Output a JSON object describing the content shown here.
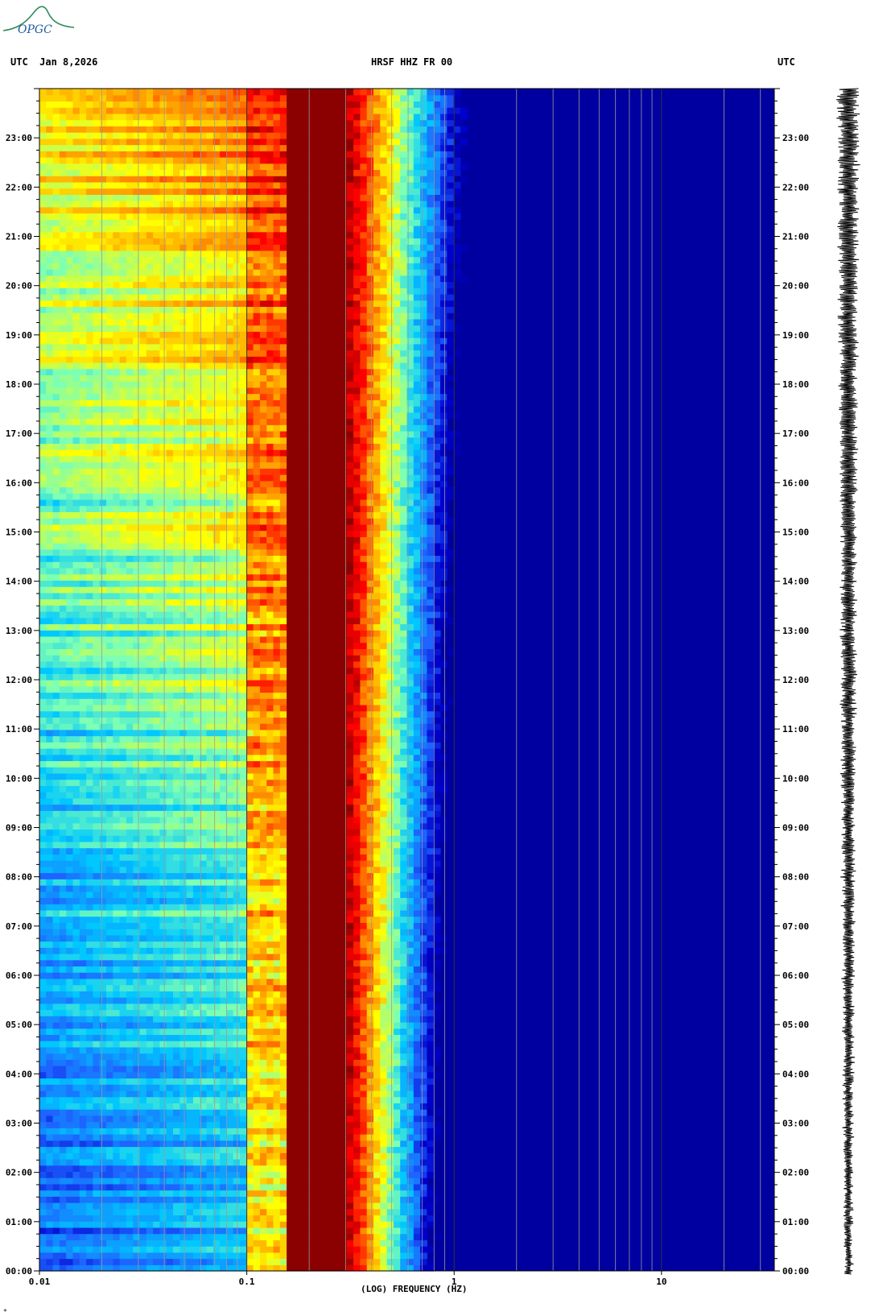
{
  "header": {
    "timezone_left": "UTC",
    "date": "Jan 8,2026",
    "station": "HRSF HHZ FR 00",
    "timezone_right": "UTC"
  },
  "logo_text": "OPGC",
  "corner_mark": "*",
  "chart_data": {
    "type": "heatmap",
    "title": "HRSF HHZ FR 00",
    "xlabel": "(LOG) FREQUENCY (HZ)",
    "x_scale": "log",
    "xlim": [
      0.01,
      35
    ],
    "x_ticks": [
      0.01,
      0.1,
      1,
      10
    ],
    "x_tick_labels": [
      "0.01",
      "0.1",
      "1",
      "10"
    ],
    "ylim_hours_utc": [
      0,
      24
    ],
    "y_tick_labels": [
      "00:00",
      "01:00",
      "02:00",
      "03:00",
      "04:00",
      "05:00",
      "06:00",
      "07:00",
      "08:00",
      "09:00",
      "10:00",
      "11:00",
      "12:00",
      "13:00",
      "14:00",
      "15:00",
      "16:00",
      "17:00",
      "18:00",
      "19:00",
      "20:00",
      "21:00",
      "22:00",
      "23:00"
    ],
    "colormap": [
      "#00008b",
      "#0000cd",
      "#1e64ff",
      "#00c8ff",
      "#7dffb4",
      "#ffff00",
      "#ff8c00",
      "#ff0000",
      "#8b0000"
    ],
    "microseism_peak_band_hz": [
      0.15,
      0.3
    ],
    "secondary_band_hz": [
      0.1,
      0.13
    ],
    "seismogram_trace": true
  }
}
